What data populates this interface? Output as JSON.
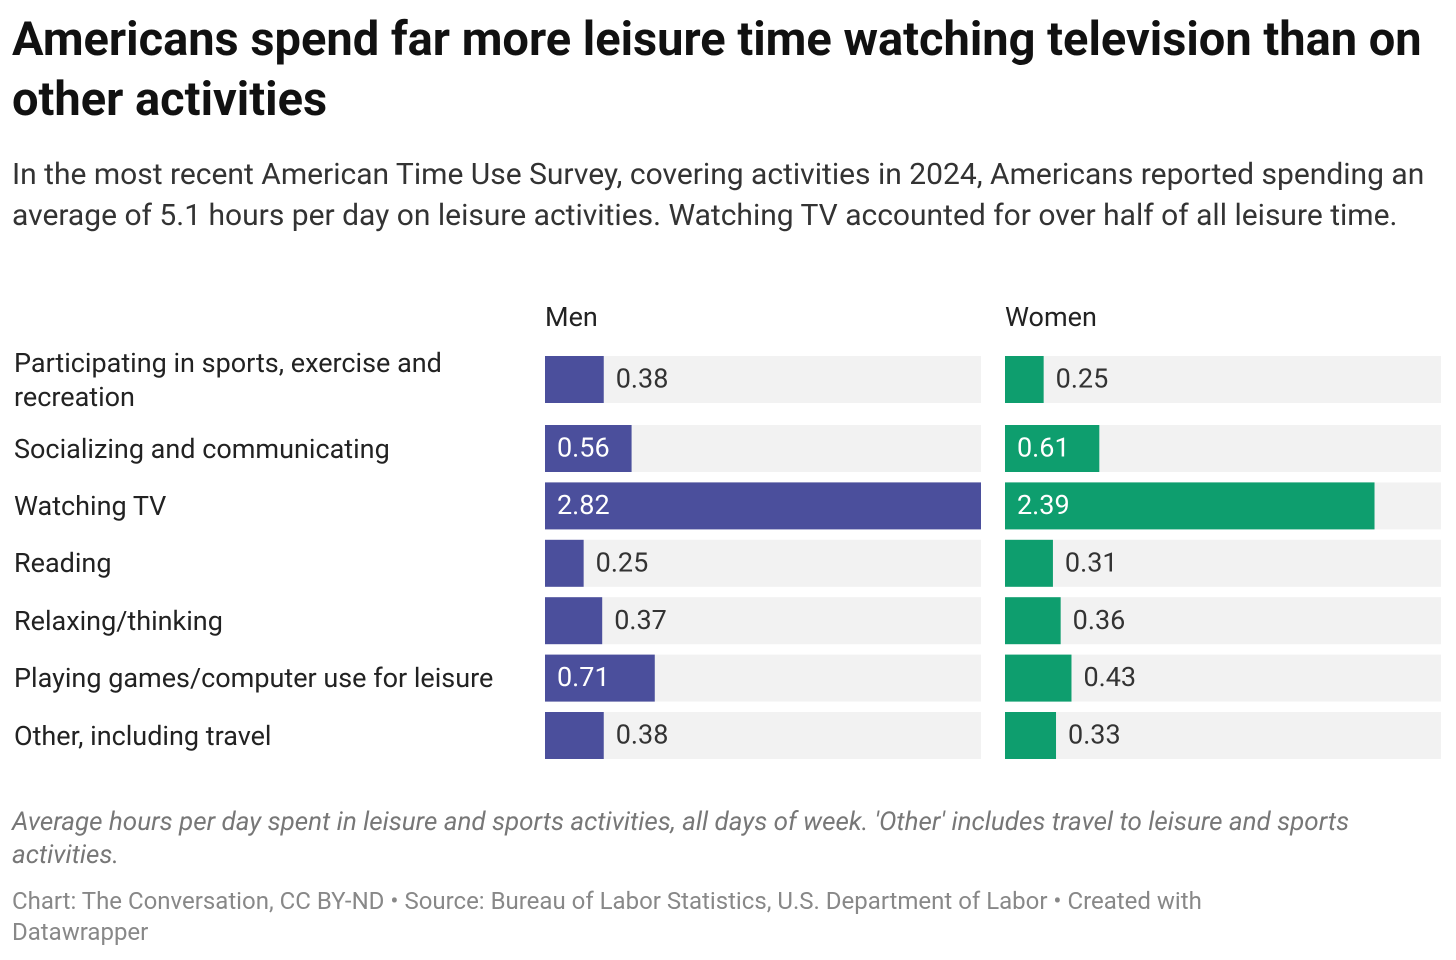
{
  "chart_data": {
    "type": "bar",
    "title": "Americans spend far more leisure time watching television than on other activities",
    "subtitle": "In the most recent American Time Use Survey, covering activities in 2024, Americans reported spending an average of 5.1 hours per day on leisure activities. Watching TV accounted for over half of all leisure time.",
    "categories": [
      "Participating in sports, exercise and recreation",
      "Socializing and communicating",
      "Watching TV",
      "Reading",
      "Relaxing/thinking",
      "Playing games/computer use for leisure",
      "Other, including travel"
    ],
    "series": [
      {
        "name": "Men",
        "color": "#4b4f9c",
        "values": [
          0.38,
          0.56,
          2.82,
          0.25,
          0.37,
          0.71,
          0.38
        ]
      },
      {
        "name": "Women",
        "color": "#0e9e6e",
        "values": [
          0.25,
          0.61,
          2.39,
          0.31,
          0.36,
          0.43,
          0.33
        ]
      }
    ],
    "xlim": [
      0,
      2.82
    ],
    "note": "Average hours per day spent in leisure and sports activities, all days of week. 'Other' includes travel to leisure and sports activities.",
    "credit": "Chart: The Conversation, CC BY-ND • Source: Bureau of Labor Statistics, U.S. Department of Labor • Created with Datawrapper"
  }
}
